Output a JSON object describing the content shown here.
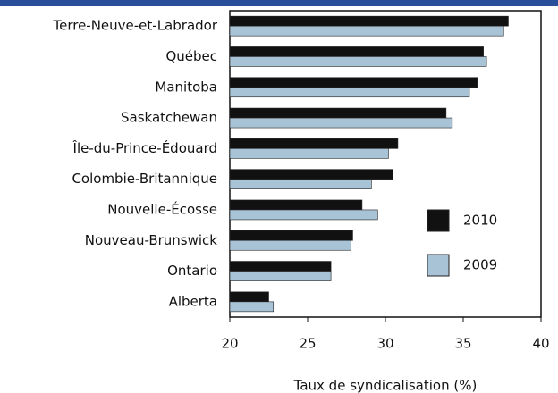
{
  "chart_data": {
    "type": "bar",
    "orientation": "horizontal",
    "x_label": "Taux de syndicalisation (%)",
    "categories": [
      "Terre-Neuve-et-Labrador",
      "Québec",
      "Manitoba",
      "Saskatchewan",
      "Île-du-Prince-Édouard",
      "Colombie-Britannique",
      "Nouvelle-Écosse",
      "Nouveau-Brunswick",
      "Ontario",
      "Alberta"
    ],
    "series": [
      {
        "name": "2010",
        "color": "#111111",
        "values": [
          37.9,
          36.3,
          35.9,
          33.9,
          30.8,
          30.5,
          28.5,
          27.9,
          26.5,
          22.5
        ]
      },
      {
        "name": "2009",
        "color": "#a9c3d6",
        "values": [
          37.6,
          36.5,
          35.4,
          34.3,
          30.2,
          29.1,
          29.5,
          27.8,
          26.5,
          22.8
        ]
      }
    ],
    "xlim": [
      20,
      40
    ],
    "xticks": [
      20,
      25,
      30,
      35,
      40
    ],
    "grid": false
  }
}
